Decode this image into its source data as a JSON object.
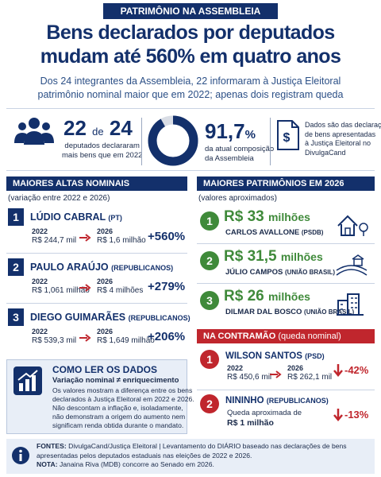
{
  "header": {
    "kicker": "PATRIMÔNIO NA ASSEMBLEIA",
    "title_lines": [
      "Bens declarados por deputados",
      "mudam até 560% em quatro anos"
    ],
    "subtitle_lines": [
      "Dos 24 integrantes da Assembleia, 22 informaram à Justiça Eleitoral",
      "patrimônio nominal maior que em 2022; apenas dois registram queda"
    ]
  },
  "stats": [
    {
      "big": "22",
      "connector": "de",
      "total": "24",
      "caption_lines": [
        "deputados declararam",
        "mais bens que em 2022"
      ]
    },
    {
      "value": 91.7,
      "label": "91,7",
      "unit": "%",
      "caption_lines": [
        "da atual composição",
        "da Assembleia"
      ]
    },
    {
      "caption_lines": [
        "Dados são das declarações",
        "de bens apresentadas",
        "à Justiça Eleitoral no",
        "DivulgaCand"
      ]
    }
  ],
  "highest_increases": {
    "title": "MAIORES ALTAS NOMINAIS",
    "note": "(variação entre 2022 e 2026)",
    "entries": [
      {
        "rank": "1",
        "name": "LÚDIO CABRAL",
        "party": "(PT)",
        "year_a": "2022",
        "value_a": "R$ 244,7 mil",
        "year_b": "2026",
        "value_b": "R$ 1,6 milhão",
        "change": "+560%"
      },
      {
        "rank": "2",
        "name": "PAULO ARAÚJO",
        "party": "(REPUBLICANOS)",
        "year_a": "2022",
        "value_a": "R$ 1,061 milhão",
        "year_b": "2026",
        "value_b": "R$ 4 milhões",
        "change": "+279%"
      },
      {
        "rank": "3",
        "name": "DIEGO GUIMARÃES",
        "party": "(REPUBLICANOS)",
        "year_a": "2022",
        "value_a": "R$ 539,3 mil",
        "year_b": "2026",
        "value_b": "R$ 1,649 milhão",
        "change": "+206%"
      }
    ]
  },
  "how_to_read": {
    "title": "COMO LER OS DADOS",
    "subtitle": "Variação nominal ≠ enriquecimento",
    "body_lines": [
      "Os valores mostram a diferença entre os bens",
      "declarados à Justiça Eleitoral em 2022 e 2026.",
      "Não descontam a inflação e, isoladamente,",
      "não demonstram a origem do aumento nem",
      "significam renda obtida durante o mandato."
    ]
  },
  "largest_assets": {
    "title": "MAIORES PATRIMÔNIOS EM 2026",
    "note": "(valores aproximados)",
    "entries": [
      {
        "rank": "1",
        "amount": "R$ 33",
        "unit": "milhões",
        "name": "CARLOS AVALLONE",
        "party": "(PSDB)"
      },
      {
        "rank": "2",
        "amount": "R$ 31,5",
        "unit": "milhões",
        "name": "JÚLIO CAMPOS",
        "party": "(UNIÃO BRASIL)"
      },
      {
        "rank": "3",
        "amount": "R$ 26",
        "unit": "milhões",
        "name": "DILMAR DAL BOSCO",
        "party": "(UNIÃO BRASIL)"
      }
    ]
  },
  "against_trend": {
    "title": "NA CONTRAMÃO",
    "note": "(queda nominal)",
    "entries": [
      {
        "rank": "1",
        "name": "WILSON SANTOS",
        "party": "(PSD)",
        "year_a": "2022",
        "value_a": "R$ 450,6 mil",
        "year_b": "2026",
        "value_b": "R$ 262,1 mil",
        "change": "-42%"
      },
      {
        "rank": "2",
        "name": "NININHO",
        "party": "(REPUBLICANOS)",
        "detail": "Queda aproximada de",
        "amount": "R$ 1 milhão",
        "change": "-13%"
      }
    ]
  },
  "footer": {
    "sources_label": "FONTES:",
    "sources_lines": [
      "DivulgaCand/Justiça Eleitoral | Levantamento do DIÁRIO baseado nas declarações de bens",
      "apresentadas pelos deputados estaduais nas eleições de 2022 e 2026."
    ],
    "note_label": "NOTA:",
    "note": "Janaina Riva (MDB) concorre ao Senado em 2026."
  }
}
